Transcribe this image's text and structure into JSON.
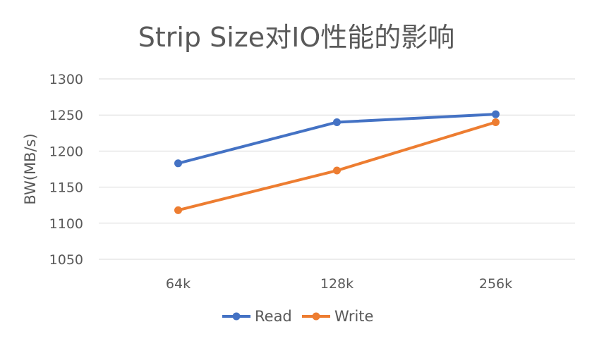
{
  "chart_data": {
    "type": "line",
    "title": "Strip Size对IO性能的影响",
    "xlabel": "",
    "ylabel": "BW(MB/s)",
    "categories": [
      "64k",
      "128k",
      "256k"
    ],
    "series": [
      {
        "name": "Read",
        "values": [
          1183,
          1240,
          1251
        ],
        "color": "#4472C4"
      },
      {
        "name": "Write",
        "values": [
          1118,
          1173,
          1240
        ],
        "color": "#ED7D31"
      }
    ],
    "ylim": [
      1050,
      1300
    ],
    "yticks": [
      1050,
      1100,
      1150,
      1200,
      1250,
      1300
    ],
    "grid": true,
    "legend_position": "bottom"
  }
}
